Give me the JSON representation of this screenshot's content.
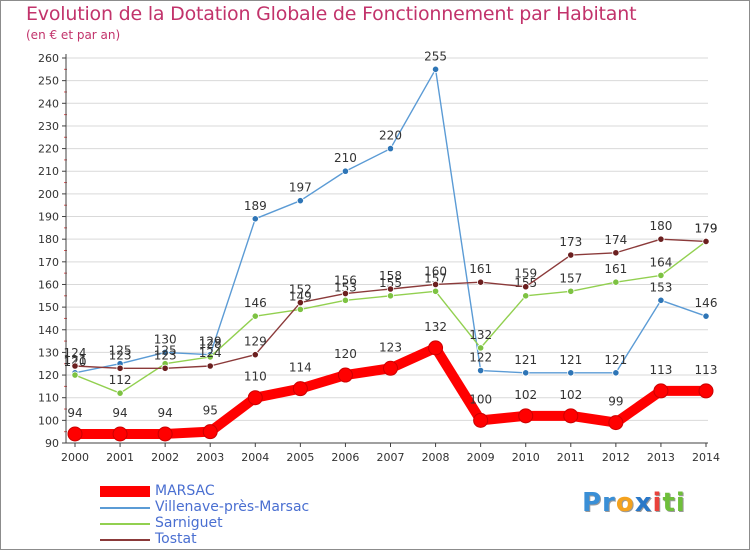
{
  "title": "Evolution de la Dotation Globale de Fonctionnement par Habitant",
  "subtitle": "(en € et par an)",
  "logo": {
    "parts": [
      "Pr",
      "o",
      "x",
      "i",
      "ti"
    ],
    "colors": [
      "#3a8fd6",
      "#f4a21e",
      "#2a78c8",
      "#e9423b",
      "#6fbf3a"
    ]
  },
  "colors": {
    "title": "#c2336b",
    "axis": "#404040",
    "grid": "#d9d9d9",
    "legend_text": "#4a6fd1"
  },
  "chart_data": {
    "type": "line",
    "title": "Evolution de la Dotation Globale de Fonctionnement par Habitant",
    "subtitle": "(en € et par an)",
    "xlabel": "",
    "ylabel": "",
    "x": [
      "2000",
      "2001",
      "2002",
      "2003",
      "2004",
      "2005",
      "2006",
      "2007",
      "2008",
      "2009",
      "2010",
      "2011",
      "2012",
      "2013",
      "2014"
    ],
    "ylim": [
      90,
      260
    ],
    "yticks": [
      90,
      100,
      110,
      120,
      130,
      140,
      150,
      160,
      170,
      180,
      190,
      200,
      210,
      220,
      230,
      240,
      250,
      260
    ],
    "grid": "horizontal",
    "legend_position": "bottom-left",
    "series": [
      {
        "name": "MARSAC",
        "color": "#ff0000",
        "style": "thick",
        "values": [
          94,
          94,
          94,
          95,
          110,
          114,
          120,
          123,
          132,
          100,
          102,
          102,
          99,
          113,
          113
        ],
        "labels": [
          "94",
          "94",
          "94",
          "95",
          "110",
          "114",
          "120",
          "123",
          "132",
          "100",
          "102",
          "102",
          "99",
          "113",
          "113"
        ]
      },
      {
        "name": "Villenave-près-Marsac",
        "color": "#5b9bd5",
        "marker": "#2e75b6",
        "style": "thin",
        "values": [
          121,
          125,
          130,
          129,
          189,
          197,
          210,
          220,
          255,
          122,
          121,
          121,
          121,
          153,
          146
        ],
        "labels": [
          "121",
          "125",
          "130",
          "129",
          "189",
          "197",
          "210",
          "220",
          "255",
          "122",
          "121",
          "121",
          "121",
          "153",
          "146"
        ]
      },
      {
        "name": "Sarniguet",
        "color": "#92d050",
        "marker": "#7dc242",
        "style": "thin",
        "values": [
          120,
          112,
          125,
          128,
          146,
          149,
          153,
          155,
          157,
          132,
          155,
          157,
          161,
          164,
          179
        ],
        "labels": [
          "120",
          "112",
          "125",
          "128",
          "146",
          "149",
          "153",
          "155",
          "157",
          "132",
          "155",
          "157",
          "161",
          "164",
          "179"
        ]
      },
      {
        "name": "Tostat",
        "color": "#8b3a3a",
        "marker": "#6b1f1f",
        "style": "thin",
        "values": [
          124,
          123,
          123,
          124,
          129,
          152,
          156,
          158,
          160,
          161,
          159,
          173,
          174,
          180,
          179
        ],
        "labels": [
          "124",
          "123",
          "123",
          "124",
          "129",
          "152",
          "156",
          "158",
          "160",
          "161",
          "159",
          "173",
          "174",
          "180",
          "179"
        ]
      }
    ]
  }
}
